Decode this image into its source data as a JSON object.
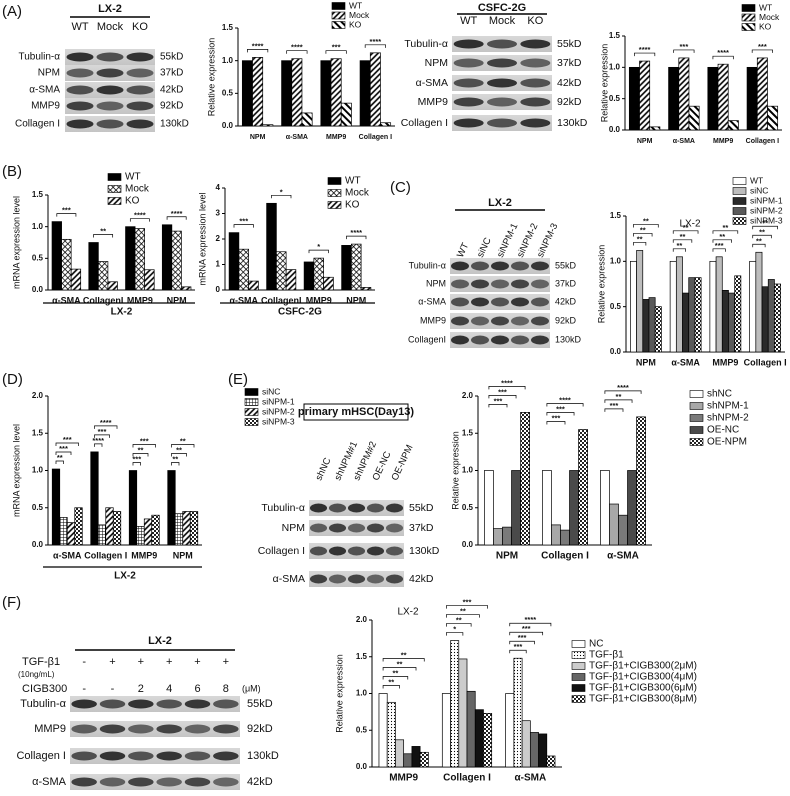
{
  "panel_labels": [
    "(A)",
    "(B)",
    "(C)",
    "(D)",
    "(E)",
    "(F)"
  ],
  "blots": [
    {
      "title": "LX-2",
      "lanes": [
        "WT",
        "Mock",
        "KO"
      ],
      "rows": [
        {
          "name": "Tubulin-α",
          "size": "55kD"
        },
        {
          "name": "NPM",
          "size": "37kD"
        },
        {
          "name": "α-SMA",
          "size": "42kD"
        },
        {
          "name": "MMP9",
          "size": "92kD"
        },
        {
          "name": "Collagen I",
          "size": "130kD"
        }
      ]
    },
    {
      "title": "CSFC-2G",
      "lanes": [
        "WT",
        "Mock",
        "KO"
      ],
      "rows": [
        {
          "name": "Tubulin-α",
          "size": "55kD"
        },
        {
          "name": "NPM",
          "size": "37kD"
        },
        {
          "name": "α-SMA",
          "size": "42kD"
        },
        {
          "name": "MMP9",
          "size": "92kD"
        },
        {
          "name": "Collagen I",
          "size": "130kD"
        }
      ]
    },
    {
      "title": "LX-2",
      "lanes": [
        "WT",
        "siNC",
        "siNPM-1",
        "siNPM-2",
        "siNPM-3"
      ],
      "rows": [
        {
          "name": "Tubulin-α",
          "size": "55kD"
        },
        {
          "name": "NPM",
          "size": "37kD"
        },
        {
          "name": "α-SMA",
          "size": "42kD"
        },
        {
          "name": "MMP9",
          "size": "92kD"
        },
        {
          "name": "CollagenI",
          "size": "130kD"
        }
      ]
    },
    {
      "title": "primary mHSC(Day13)",
      "lanes": [
        "shNC",
        "shNPM#1",
        "shNPM#2",
        "OE-NC",
        "OE-NPM"
      ],
      "rows": [
        {
          "name": "Tubulin-α",
          "size": "55kD"
        },
        {
          "name": "NPM",
          "size": "37kD"
        },
        {
          "name": "Collagen I",
          "size": "130kD"
        },
        {
          "name": "α-SMA",
          "size": "42kD"
        }
      ]
    },
    {
      "title": "LX-2",
      "treatments": [
        {
          "name": "TGF-β1",
          "note": "(10ng/mL)",
          "levels": [
            "-",
            "+",
            "+",
            "+",
            "+",
            "+"
          ]
        },
        {
          "name": "CIGB300",
          "unit": "(μM)",
          "levels": [
            "-",
            "-",
            "2",
            "4",
            "6",
            "8"
          ]
        }
      ],
      "rows": [
        {
          "name": "Tubulin-α",
          "size": "55kD"
        },
        {
          "name": "MMP9",
          "size": "92kD"
        },
        {
          "name": "Collagen I",
          "size": "130kD"
        },
        {
          "name": "α-SMA",
          "size": "42kD"
        }
      ]
    }
  ],
  "chart_data": [
    {
      "type": "bar",
      "y_label": "Relative expression",
      "categories": [
        "NPM",
        "α-SMA",
        "MMP9",
        "Collagen I"
      ],
      "series": [
        {
          "name": "WT",
          "color": "#000000",
          "values": [
            1.0,
            1.0,
            1.0,
            1.0
          ]
        },
        {
          "name": "Mock",
          "color": "#ffffff",
          "pattern": "diag",
          "values": [
            1.05,
            1.03,
            1.03,
            1.12
          ]
        },
        {
          "name": "KO",
          "color": "#ffffff",
          "pattern": "diag2",
          "values": [
            0.02,
            0.2,
            0.35,
            0.05
          ]
        }
      ],
      "ylim": [
        0,
        1.5
      ],
      "yticks": [
        {
          "value": 0,
          "label": "0.0"
        },
        {
          "value": 0.5,
          "label": "0.5"
        },
        {
          "value": 1,
          "label": "1.0"
        },
        {
          "value": 1.5,
          "label": "1.5"
        }
      ],
      "annotations": [
        [
          "****"
        ],
        [
          "****"
        ],
        [
          "***"
        ],
        [
          "****"
        ]
      ]
    },
    {
      "type": "bar",
      "y_label": "Relative expression",
      "categories": [
        "NPM",
        "α-SMA",
        "MMP9",
        "Collagen I"
      ],
      "series": [
        {
          "name": "WT",
          "color": "#000000",
          "values": [
            1.0,
            1.0,
            1.0,
            1.0
          ]
        },
        {
          "name": "Mock",
          "color": "#ffffff",
          "pattern": "diag",
          "values": [
            1.1,
            1.15,
            1.05,
            1.15
          ]
        },
        {
          "name": "KO",
          "color": "#ffffff",
          "pattern": "diag2",
          "values": [
            0.05,
            0.38,
            0.15,
            0.38
          ]
        }
      ],
      "ylim": [
        0,
        1.5
      ],
      "yticks": [
        {
          "value": 0,
          "label": "0.0"
        },
        {
          "value": 0.5,
          "label": "0.5"
        },
        {
          "value": 1,
          "label": "1.0"
        },
        {
          "value": 1.5,
          "label": "1.5"
        }
      ],
      "annotations": [
        [
          "****"
        ],
        [
          "***"
        ],
        [
          "****"
        ],
        [
          "***"
        ]
      ]
    },
    {
      "type": "bar",
      "y_label": "mRNA expression level",
      "group_label": "LX-2",
      "categories": [
        "α-SMA",
        "CollagenI",
        "MMP9",
        "NPM"
      ],
      "series": [
        {
          "name": "WT",
          "color": "#000000",
          "values": [
            1.08,
            0.75,
            1.0,
            1.03
          ]
        },
        {
          "name": "Mock",
          "color": "#ffffff",
          "pattern": "cross",
          "values": [
            0.8,
            0.45,
            0.97,
            0.93
          ]
        },
        {
          "name": "KO",
          "color": "#ffffff",
          "pattern": "diag",
          "values": [
            0.33,
            0.13,
            0.32,
            0.05
          ]
        }
      ],
      "ylim": [
        0,
        1.5
      ],
      "yticks": [
        {
          "value": 0,
          "label": "0.0"
        },
        {
          "value": 0.5,
          "label": "0.5"
        },
        {
          "value": 1,
          "label": "1.0"
        },
        {
          "value": 1.5,
          "label": "1.5"
        }
      ],
      "annotations": [
        [
          "***"
        ],
        [
          "**"
        ],
        [
          "****"
        ],
        [
          "****"
        ]
      ]
    },
    {
      "type": "bar",
      "y_label": "mRNA expression level",
      "group_label": "CSFC-2G",
      "categories": [
        "α-SMA",
        "CollagenI",
        "MMP9",
        "NPM"
      ],
      "series": [
        {
          "name": "WT",
          "color": "#000000",
          "values": [
            2.25,
            3.4,
            1.1,
            1.75
          ]
        },
        {
          "name": "Mock",
          "color": "#ffffff",
          "pattern": "cross",
          "values": [
            1.6,
            1.5,
            1.25,
            1.8
          ]
        },
        {
          "name": "KO",
          "color": "#ffffff",
          "pattern": "diag",
          "values": [
            0.35,
            0.8,
            0.5,
            0.1
          ]
        }
      ],
      "ylim": [
        0,
        4
      ],
      "yticks": [
        0,
        1,
        2,
        3,
        4
      ],
      "annotations": [
        [
          "***"
        ],
        [
          "*"
        ],
        [
          "*"
        ],
        [
          "****"
        ]
      ]
    },
    {
      "type": "bar",
      "title": "LX-2",
      "y_label": "Relative expression",
      "categories": [
        "NPM",
        "α-SMA",
        "MMP9",
        "Collagen I"
      ],
      "series": [
        {
          "name": "WT",
          "color": "#ffffff",
          "values": [
            1.0,
            1.0,
            1.0,
            1.0
          ]
        },
        {
          "name": "siNC",
          "color": "#bdbdbd",
          "values": [
            1.12,
            1.05,
            1.05,
            1.1
          ]
        },
        {
          "name": "siNPM-1",
          "color": "#2a2a2a",
          "values": [
            0.58,
            0.65,
            0.68,
            0.72
          ]
        },
        {
          "name": "siNPM-2",
          "color": "#5a5a5a",
          "values": [
            0.6,
            0.82,
            0.65,
            0.8
          ]
        },
        {
          "name": "siNPM-3",
          "color": "#ffffff",
          "pattern": "check",
          "values": [
            0.5,
            0.82,
            0.84,
            0.75
          ]
        }
      ],
      "ylim": [
        0,
        1.5
      ],
      "yticks": [
        {
          "value": 0,
          "label": "0.0"
        },
        {
          "value": 0.5,
          "label": "0.5"
        },
        {
          "value": 1,
          "label": "1.0"
        },
        {
          "value": 1.5,
          "label": "1.5"
        }
      ],
      "annotations": [
        [
          "**",
          "**",
          "**"
        ],
        [
          "**",
          "**",
          "**"
        ],
        [
          "***",
          "**",
          "**"
        ],
        [
          "**",
          "**",
          "**"
        ]
      ]
    },
    {
      "type": "bar",
      "y_label": "mRNA expression level",
      "group_label": "LX-2",
      "categories": [
        "α-SMA",
        "Collagen I",
        "MMP9",
        "NPM"
      ],
      "series": [
        {
          "name": "siNC",
          "color": "#000000",
          "values": [
            1.02,
            1.25,
            1.0,
            1.0
          ]
        },
        {
          "name": "siNPM-1",
          "color": "#ffffff",
          "pattern": "grid",
          "values": [
            0.37,
            0.27,
            0.25,
            0.42
          ]
        },
        {
          "name": "siNPM-2",
          "color": "#ffffff",
          "pattern": "diag",
          "values": [
            0.3,
            0.5,
            0.35,
            0.45
          ]
        },
        {
          "name": "siNPM-3",
          "color": "#ffffff",
          "pattern": "check",
          "values": [
            0.5,
            0.45,
            0.4,
            0.45
          ]
        }
      ],
      "ylim": [
        0,
        2
      ],
      "yticks": [
        {
          "value": 0,
          "label": "0.0"
        },
        {
          "value": 0.5,
          "label": "0.5"
        },
        {
          "value": 1,
          "label": "1.0"
        },
        {
          "value": 1.5,
          "label": "1.5"
        },
        {
          "value": 2,
          "label": "2.0"
        }
      ],
      "annotations": [
        [
          "**",
          "***",
          "***"
        ],
        [
          "****",
          "***",
          "****"
        ],
        [
          "***",
          "**",
          "***"
        ],
        [
          "**",
          "**",
          "**"
        ]
      ]
    },
    {
      "type": "bar",
      "y_label": "Relative expression",
      "categories": [
        "NPM",
        "Collagen I",
        "α-SMA"
      ],
      "series": [
        {
          "name": "shNC",
          "color": "#ffffff",
          "values": [
            1.0,
            1.0,
            1.0
          ]
        },
        {
          "name": "shNPM-1",
          "color": "#a8a8a8",
          "values": [
            0.22,
            0.27,
            0.55
          ]
        },
        {
          "name": "shNPM-2",
          "color": "#7a7a7a",
          "values": [
            0.24,
            0.2,
            0.4
          ]
        },
        {
          "name": "OE-NC",
          "color": "#4a4a4a",
          "values": [
            1.0,
            1.0,
            1.0
          ]
        },
        {
          "name": "OE-NPM",
          "color": "#ffffff",
          "pattern": "check",
          "values": [
            1.78,
            1.55,
            1.72
          ]
        }
      ],
      "ylim": [
        0,
        2
      ],
      "yticks": [
        {
          "value": 0,
          "label": "0.0"
        },
        {
          "value": 0.5,
          "label": "0.5"
        },
        {
          "value": 1,
          "label": "1.0"
        },
        {
          "value": 1.5,
          "label": "1.5"
        },
        {
          "value": 2,
          "label": "2.0"
        }
      ],
      "annotations": [
        [
          "***",
          "***",
          "****"
        ],
        [
          "***",
          "***",
          "****"
        ],
        [
          "***",
          "**",
          "****"
        ]
      ]
    },
    {
      "type": "bar",
      "title": "LX-2",
      "y_label": "Relative expression",
      "categories": [
        "MMP9",
        "Collagen I",
        "α-SMA"
      ],
      "series": [
        {
          "name": "NC",
          "color": "#ffffff",
          "values": [
            1.0,
            1.0,
            1.0
          ]
        },
        {
          "name": "TGF-β1",
          "color": "#ffffff",
          "pattern": "dots",
          "values": [
            0.88,
            1.72,
            1.48
          ]
        },
        {
          "name": "TGF-β1+CIGB300(2μM)",
          "color": "#cccccc",
          "values": [
            0.37,
            1.47,
            0.63
          ]
        },
        {
          "name": "TGF-β1+CIGB300(4μM)",
          "color": "#666666",
          "values": [
            0.18,
            1.03,
            0.47
          ]
        },
        {
          "name": "TGF-β1+CIGB300(6μM)",
          "color": "#111111",
          "values": [
            0.28,
            0.78,
            0.45
          ]
        },
        {
          "name": "TGF-β1+CIGB300(8μM)",
          "color": "#ffffff",
          "pattern": "check",
          "values": [
            0.2,
            0.73,
            0.15
          ]
        }
      ],
      "ylim": [
        0,
        2
      ],
      "yticks": [
        {
          "value": 0,
          "label": "0.0"
        },
        {
          "value": 0.5,
          "label": "0.5"
        },
        {
          "value": 1,
          "label": "1.0"
        },
        {
          "value": 1.5,
          "label": "1.5"
        },
        {
          "value": 2,
          "label": "2.0"
        }
      ],
      "annotations": [
        [
          "**",
          "**",
          "**",
          "**"
        ],
        [
          "*",
          "**",
          "**",
          "***"
        ],
        [
          "***",
          "***",
          "***",
          "****"
        ]
      ]
    }
  ]
}
